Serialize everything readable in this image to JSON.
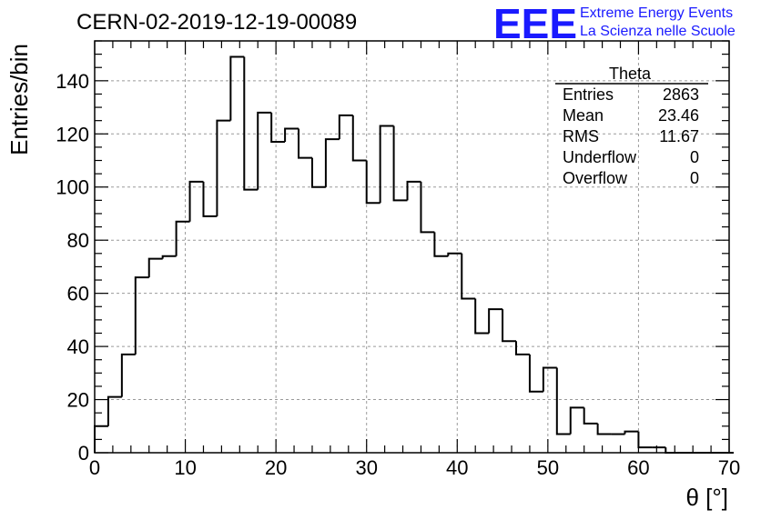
{
  "chart_data": {
    "type": "bar",
    "title": "CERN-02-2019-12-19-00089",
    "xlabel": "θ [°]",
    "ylabel": "Entries/bin",
    "xlim": [
      0,
      70
    ],
    "ylim": [
      0,
      155
    ],
    "bin_width": 1.5,
    "x_ticks": [
      0,
      10,
      20,
      30,
      40,
      50,
      60,
      70
    ],
    "y_ticks": [
      0,
      20,
      40,
      60,
      80,
      100,
      120,
      140
    ],
    "grid": true,
    "values": [
      10,
      21,
      37,
      66,
      73,
      74,
      87,
      102,
      89,
      125,
      149,
      99,
      128,
      117,
      122,
      111,
      100,
      118,
      127,
      110,
      94,
      123,
      95,
      102,
      83,
      74,
      75,
      58,
      45,
      54,
      42,
      37,
      23,
      32,
      7,
      17,
      11,
      7,
      7,
      8,
      2,
      2,
      0,
      0,
      0,
      0,
      0
    ],
    "stats_box": {
      "title": "Theta",
      "rows": [
        {
          "label": "Entries",
          "value": "2863"
        },
        {
          "label": "Mean",
          "value": "23.46"
        },
        {
          "label": "RMS",
          "value": "11.67"
        },
        {
          "label": "Underflow",
          "value": "0"
        },
        {
          "label": "Overflow",
          "value": "0"
        }
      ]
    }
  },
  "logo": {
    "mark": "EEE",
    "line1": "Extreme Energy Events",
    "line2": "La Scienza nelle Scuole",
    "color": "#1a1aff"
  },
  "colors": {
    "line": "#000000",
    "grid": "#9a9a9a"
  }
}
